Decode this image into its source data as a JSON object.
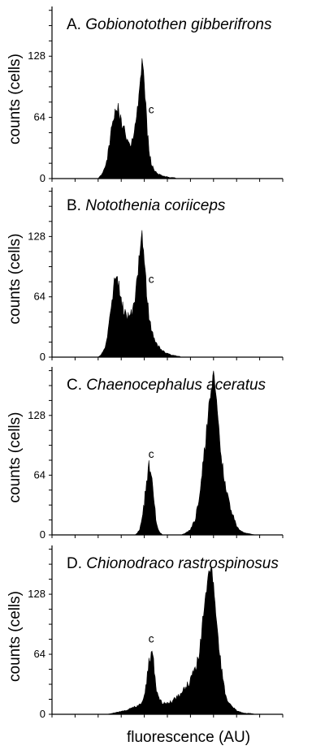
{
  "chart_data": [
    {
      "type": "area",
      "panel_letter": "A.",
      "species": "Gobionotothen gibberifrons",
      "ylabel": "counts (cells)",
      "xlabel": "",
      "yticks": [
        "0",
        "64",
        "128"
      ],
      "ylim": [
        0,
        180
      ],
      "xlim": [
        0,
        100
      ],
      "marker": {
        "label": "c",
        "x": 43
      },
      "series": [
        {
          "x": [
            20,
            21,
            22,
            23,
            24,
            25,
            26,
            27,
            28,
            29,
            30,
            31,
            32,
            33,
            34,
            35,
            36,
            37,
            38,
            39,
            40,
            41,
            42,
            43,
            44,
            45,
            46,
            47,
            48,
            49,
            50,
            51,
            52,
            53,
            54,
            55,
            56,
            58,
            60,
            62,
            64
          ],
          "values": [
            0,
            3,
            6,
            12,
            22,
            36,
            55,
            70,
            76,
            70,
            56,
            52,
            46,
            40,
            36,
            40,
            50,
            70,
            96,
            122,
            98,
            60,
            30,
            16,
            10,
            7,
            5,
            4,
            3,
            2,
            2,
            1,
            1,
            1,
            0,
            0,
            0,
            0,
            0,
            0,
            0
          ]
        }
      ]
    },
    {
      "type": "area",
      "panel_letter": "B.",
      "species": "Notothenia coriiceps",
      "ylabel": "counts (cells)",
      "xlabel": "",
      "yticks": [
        "0",
        "64",
        "128"
      ],
      "ylim": [
        0,
        180
      ],
      "xlim": [
        0,
        100
      ],
      "marker": {
        "label": "c",
        "x": 43
      },
      "series": [
        {
          "x": [
            20,
            21,
            22,
            23,
            24,
            25,
            26,
            27,
            28,
            29,
            30,
            31,
            32,
            33,
            34,
            35,
            36,
            37,
            38,
            39,
            40,
            41,
            42,
            43,
            44,
            45,
            46,
            47,
            48,
            49,
            50,
            51,
            52,
            53,
            54,
            55,
            56,
            58,
            60,
            62,
            64
          ],
          "values": [
            0,
            2,
            5,
            10,
            20,
            38,
            62,
            80,
            84,
            74,
            60,
            52,
            46,
            42,
            44,
            50,
            62,
            84,
            110,
            130,
            104,
            70,
            44,
            30,
            22,
            16,
            12,
            9,
            7,
            5,
            4,
            3,
            2,
            2,
            1,
            1,
            0,
            0,
            0,
            0,
            0
          ]
        }
      ]
    },
    {
      "type": "area",
      "panel_letter": "C.",
      "species": "Chaenocephalus aceratus",
      "ylabel": "counts (cells)",
      "xlabel": "",
      "yticks": [
        "0",
        "64",
        "128"
      ],
      "ylim": [
        0,
        180
      ],
      "xlim": [
        0,
        100
      ],
      "marker": {
        "label": "c",
        "x": 43
      },
      "series": [
        {
          "x": [
            36,
            37,
            38,
            39,
            40,
            41,
            42,
            43,
            44,
            45,
            46,
            47,
            48,
            56,
            58,
            60,
            62,
            64,
            65,
            66,
            67,
            68,
            69,
            70,
            71,
            72,
            73,
            74,
            75,
            76,
            77,
            78,
            79,
            80,
            81,
            82,
            84,
            86,
            88,
            90
          ],
          "values": [
            0,
            2,
            6,
            16,
            34,
            58,
            74,
            70,
            44,
            18,
            6,
            2,
            0,
            0,
            2,
            6,
            16,
            40,
            62,
            88,
            112,
            138,
            158,
            170,
            150,
            118,
            92,
            70,
            54,
            42,
            32,
            24,
            16,
            10,
            6,
            4,
            2,
            1,
            0,
            0
          ]
        }
      ]
    },
    {
      "type": "area",
      "panel_letter": "D.",
      "species": "Chionodraco rastrospinosus",
      "ylabel": "counts (cells)",
      "xlabel": "fluorescence (AU)",
      "yticks": [
        "0",
        "64",
        "128"
      ],
      "ylim": [
        0,
        180
      ],
      "xlim": [
        0,
        100
      ],
      "marker": {
        "label": "c",
        "x": 43
      },
      "series": [
        {
          "x": [
            24,
            26,
            28,
            30,
            32,
            34,
            36,
            38,
            39,
            40,
            41,
            42,
            43,
            44,
            45,
            46,
            47,
            48,
            50,
            52,
            54,
            56,
            58,
            60,
            62,
            64,
            65,
            66,
            67,
            68,
            69,
            70,
            71,
            72,
            73,
            74,
            75,
            76,
            78,
            80,
            82,
            84,
            86,
            88,
            90
          ],
          "values": [
            0,
            1,
            2,
            3,
            4,
            6,
            8,
            10,
            14,
            20,
            34,
            54,
            68,
            56,
            30,
            18,
            14,
            12,
            12,
            14,
            18,
            22,
            28,
            36,
            48,
            68,
            90,
            114,
            134,
            150,
            156,
            140,
            112,
            84,
            58,
            38,
            24,
            16,
            8,
            4,
            2,
            1,
            1,
            0,
            0
          ]
        }
      ]
    }
  ]
}
